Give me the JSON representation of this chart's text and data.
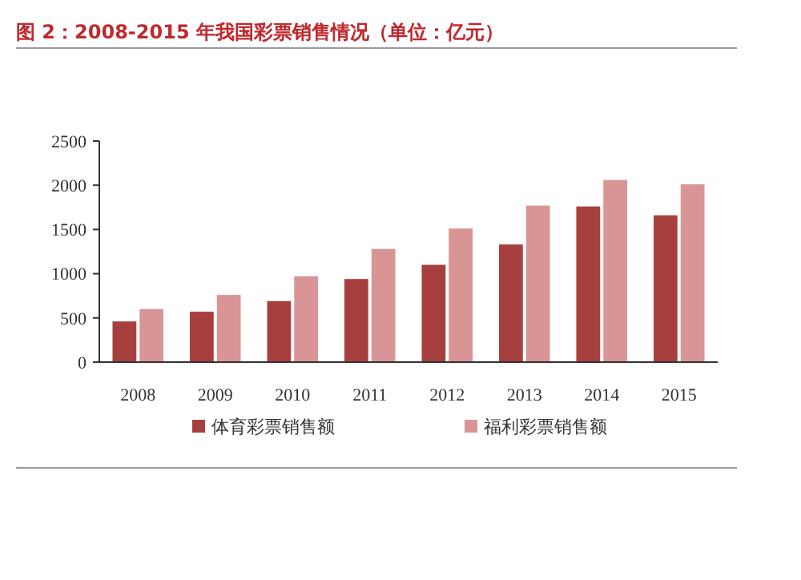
{
  "chart_data": {
    "type": "bar",
    "title": "图 2：2008-2015 年我国彩票销售情况（单位：亿元）",
    "categories": [
      "2008",
      "2009",
      "2010",
      "2011",
      "2012",
      "2013",
      "2014",
      "2015"
    ],
    "series": [
      {
        "name": "体育彩票销售额",
        "color": "#a83f3f",
        "values": [
          460,
          570,
          690,
          940,
          1100,
          1330,
          1760,
          1660
        ]
      },
      {
        "name": "福利彩票销售额",
        "color": "#d99595",
        "values": [
          600,
          760,
          970,
          1280,
          1510,
          1770,
          2060,
          2010
        ]
      }
    ],
    "ylim": [
      0,
      2500
    ],
    "yticks": [
      0,
      500,
      1000,
      1500,
      2000,
      2500
    ],
    "grid": false,
    "legend": "bottom"
  }
}
